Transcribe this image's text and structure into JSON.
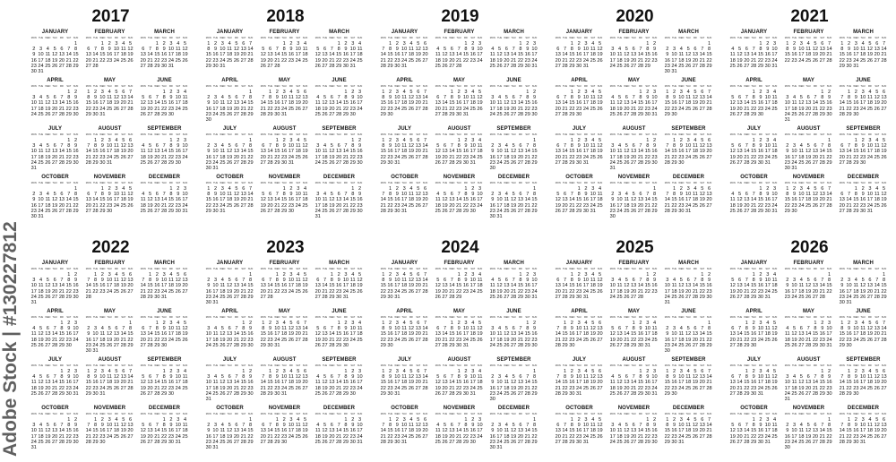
{
  "years": [
    "2017",
    "2018",
    "2019",
    "2020",
    "2021",
    "2022",
    "2023",
    "2024",
    "2025",
    "2026"
  ],
  "months": [
    "JANUARY",
    "FEBRUARY",
    "MARCH",
    "APRIL",
    "MAY",
    "JUNE",
    "JULY",
    "AUGUST",
    "SEPTEMBER",
    "OCTOBER",
    "NOVEMBER",
    "DECEMBER"
  ],
  "weekdays": [
    "MON",
    "TUE",
    "WED",
    "THU",
    "FRI",
    "SAT",
    "SUN"
  ],
  "week_start": "monday",
  "watermark": "Adobe Stock | #130227812",
  "colors": {
    "text": "#111111",
    "background": "#ffffff"
  }
}
